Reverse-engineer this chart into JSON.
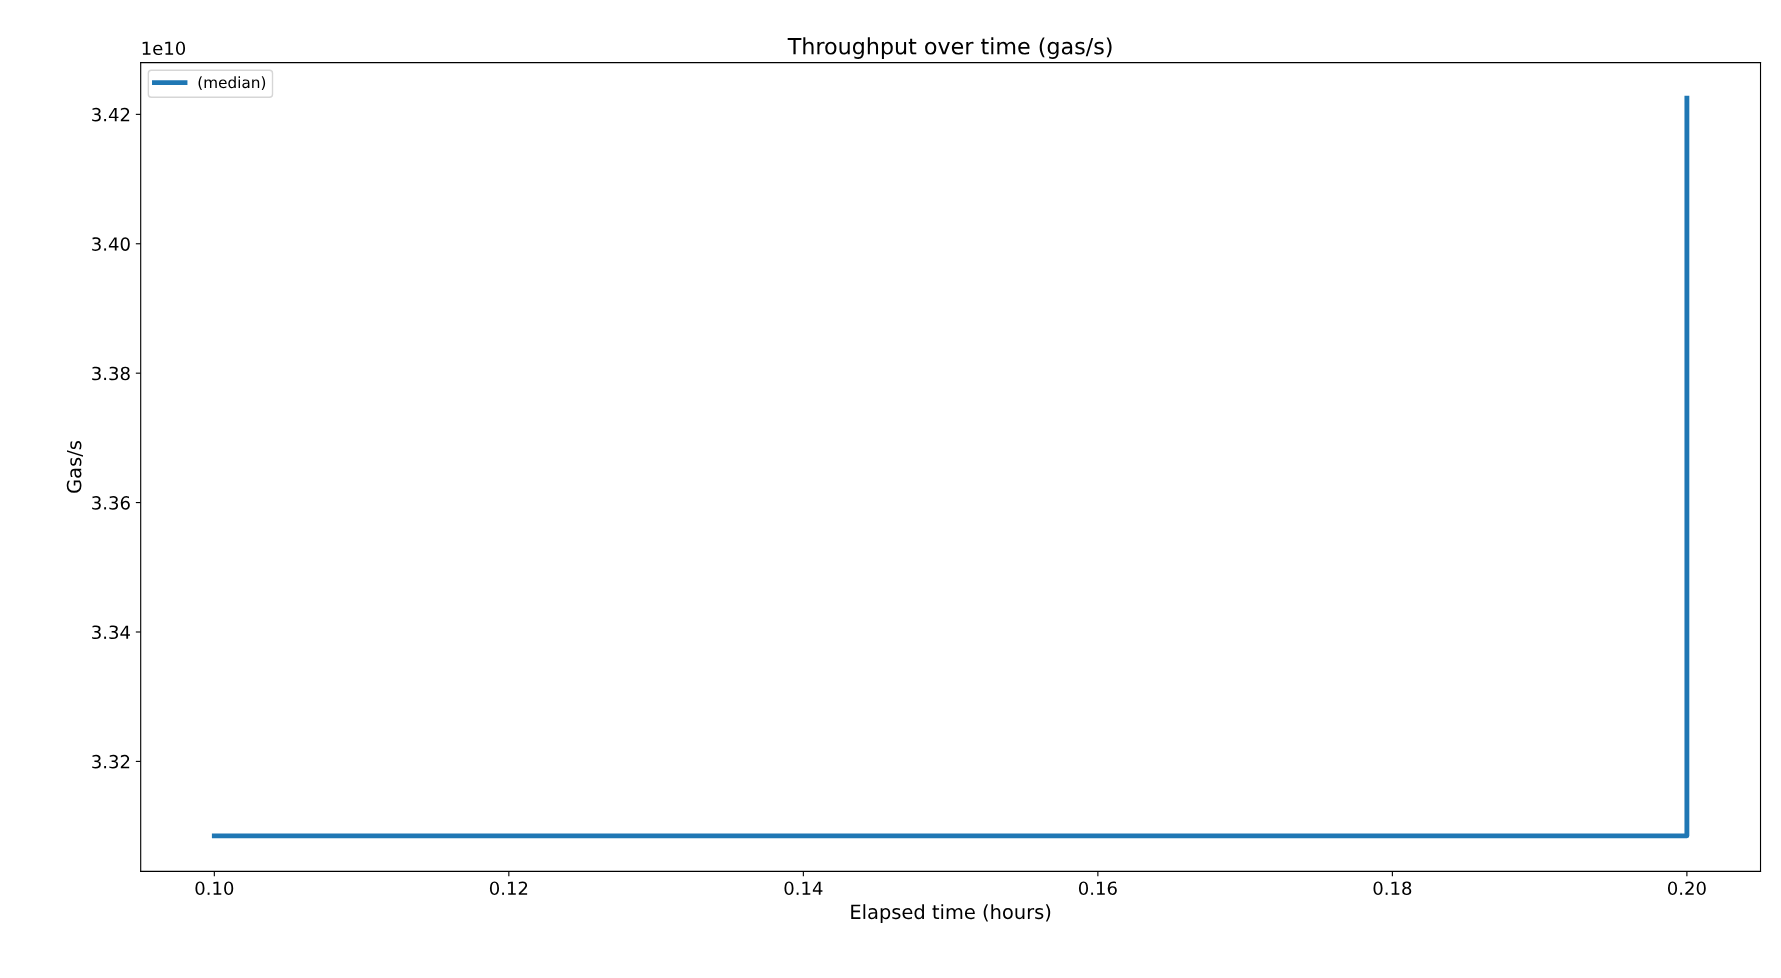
{
  "chart_data": {
    "type": "step",
    "title": "Throughput over time (gas/s)",
    "xlabel": "Elapsed time (hours)",
    "ylabel": "Gas/s",
    "annotations": [
      "1e10"
    ],
    "x": [
      0.1,
      0.2
    ],
    "series": [
      {
        "name": "(median)",
        "color": "#1f77b4",
        "values": [
          3.3085,
          3.4225
        ]
      }
    ],
    "xlim": [
      0.095,
      0.205
    ],
    "xticks": [
      {
        "value": 0.1,
        "label": "0.10"
      },
      {
        "value": 0.12,
        "label": "0.12"
      },
      {
        "value": 0.14,
        "label": "0.14"
      },
      {
        "value": 0.16,
        "label": "0.16"
      },
      {
        "value": 0.18,
        "label": "0.18"
      },
      {
        "value": 0.2,
        "label": "0.20"
      }
    ],
    "ylim": [
      3.303,
      3.428
    ],
    "yticks": [
      3.32,
      3.34,
      3.36,
      3.38,
      {
        "value": 3.4,
        "label": "3.40"
      },
      3.42
    ],
    "grid": false,
    "legend": "top left",
    "line_style": "solid"
  }
}
